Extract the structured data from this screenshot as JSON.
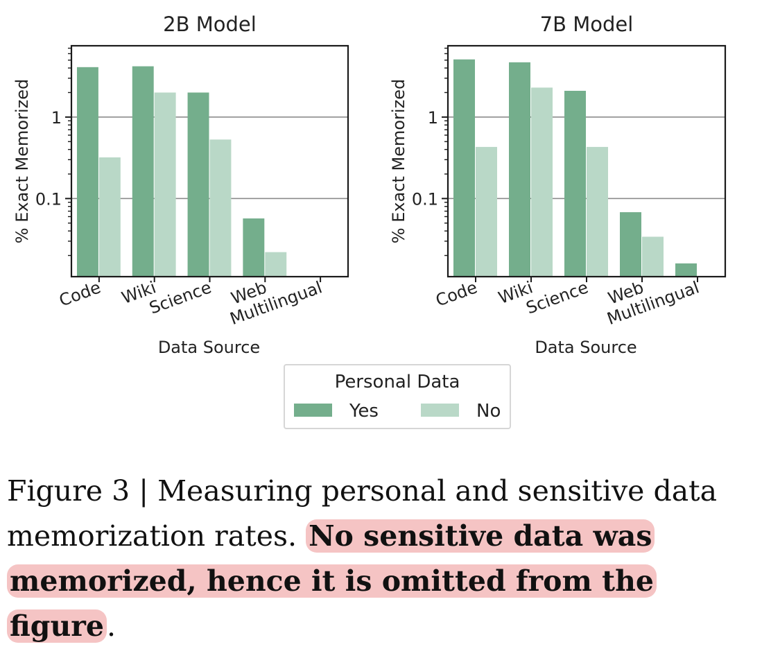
{
  "chart_data": [
    {
      "type": "bar",
      "title": "2B Model",
      "xlabel": "Data Source",
      "ylabel": "% Exact Memorized",
      "yscale": "log",
      "ylim": [
        0.011,
        7.5
      ],
      "yticks": [
        0.1,
        1
      ],
      "ytick_labels": [
        "0.1",
        "1"
      ],
      "grid": "horizontal at major ticks",
      "categories": [
        "Code",
        "Wiki",
        "Science",
        "Web",
        "Multilingual"
      ],
      "series": [
        {
          "name": "Yes",
          "values": [
            4.1,
            4.2,
            2.0,
            0.057,
            null
          ]
        },
        {
          "name": "No",
          "values": [
            0.32,
            2.0,
            0.53,
            0.022,
            null
          ]
        }
      ]
    },
    {
      "type": "bar",
      "title": "7B Model",
      "xlabel": "Data Source",
      "ylabel": "% Exact Memorized",
      "yscale": "log",
      "ylim": [
        0.011,
        7.5
      ],
      "yticks": [
        0.1,
        1
      ],
      "ytick_labels": [
        "0.1",
        "1"
      ],
      "grid": "horizontal at major ticks",
      "categories": [
        "Code",
        "Wiki",
        "Science",
        "Web",
        "Multilingual"
      ],
      "series": [
        {
          "name": "Yes",
          "values": [
            5.1,
            4.7,
            2.1,
            0.068,
            0.016
          ]
        },
        {
          "name": "No",
          "values": [
            0.43,
            2.3,
            0.43,
            0.034,
            null
          ]
        }
      ]
    }
  ],
  "legend": {
    "title": "Personal Data",
    "placement": "bottom-center",
    "entries": [
      {
        "label": "Yes",
        "color": "#74ae8c"
      },
      {
        "label": "No",
        "color": "#b9d8c7"
      }
    ]
  },
  "colors": {
    "yes": "#74ae8c",
    "no": "#b9d8c7",
    "highlight": "#f5c4c4"
  },
  "caption": {
    "plain": "Figure 3 | Measuring personal and sensitive data memorization rates. ",
    "highlighted": "No sensitive data was memorized, hence it is omitted from the figure",
    "end": "."
  }
}
